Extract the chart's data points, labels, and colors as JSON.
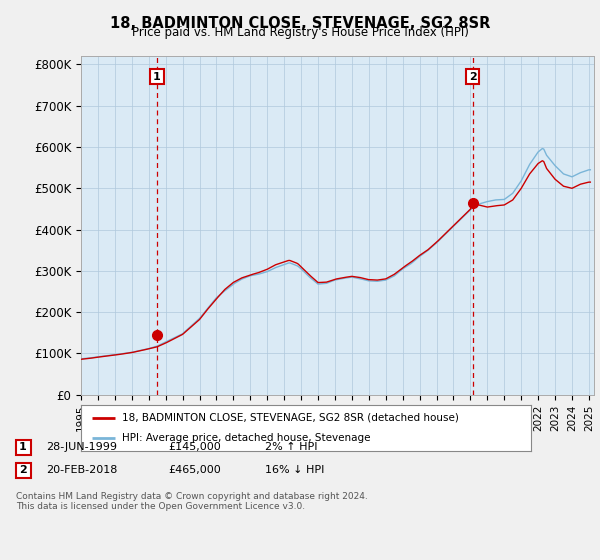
{
  "title": "18, BADMINTON CLOSE, STEVENAGE, SG2 8SR",
  "subtitle": "Price paid vs. HM Land Registry's House Price Index (HPI)",
  "ylabel_ticks": [
    "£0",
    "£100K",
    "£200K",
    "£300K",
    "£400K",
    "£500K",
    "£600K",
    "£700K",
    "£800K"
  ],
  "ytick_values": [
    0,
    100000,
    200000,
    300000,
    400000,
    500000,
    600000,
    700000,
    800000
  ],
  "ylim": [
    0,
    820000
  ],
  "xlim_start": 1995.0,
  "xlim_end": 2025.3,
  "sale1_year": 1999.49,
  "sale1_price": 145000,
  "sale2_year": 2018.13,
  "sale2_price": 465000,
  "hpi_color": "#7ab5d8",
  "hpi_fill_color": "#daeaf5",
  "price_color": "#cc0000",
  "dashed_color": "#cc0000",
  "background_color": "#f0f0f0",
  "plot_bg_color": "#daeaf5",
  "grid_color": "#b0c8dc",
  "label_box_color": "#cc0000",
  "legend_label1": "18, BADMINTON CLOSE, STEVENAGE, SG2 8SR (detached house)",
  "legend_label2": "HPI: Average price, detached house, Stevenage",
  "note1_date": "28-JUN-1999",
  "note1_price": "£145,000",
  "note1_hpi": "2% ↑ HPI",
  "note2_date": "20-FEB-2018",
  "note2_price": "£465,000",
  "note2_hpi": "16% ↓ HPI",
  "footer": "Contains HM Land Registry data © Crown copyright and database right 2024.\nThis data is licensed under the Open Government Licence v3.0."
}
